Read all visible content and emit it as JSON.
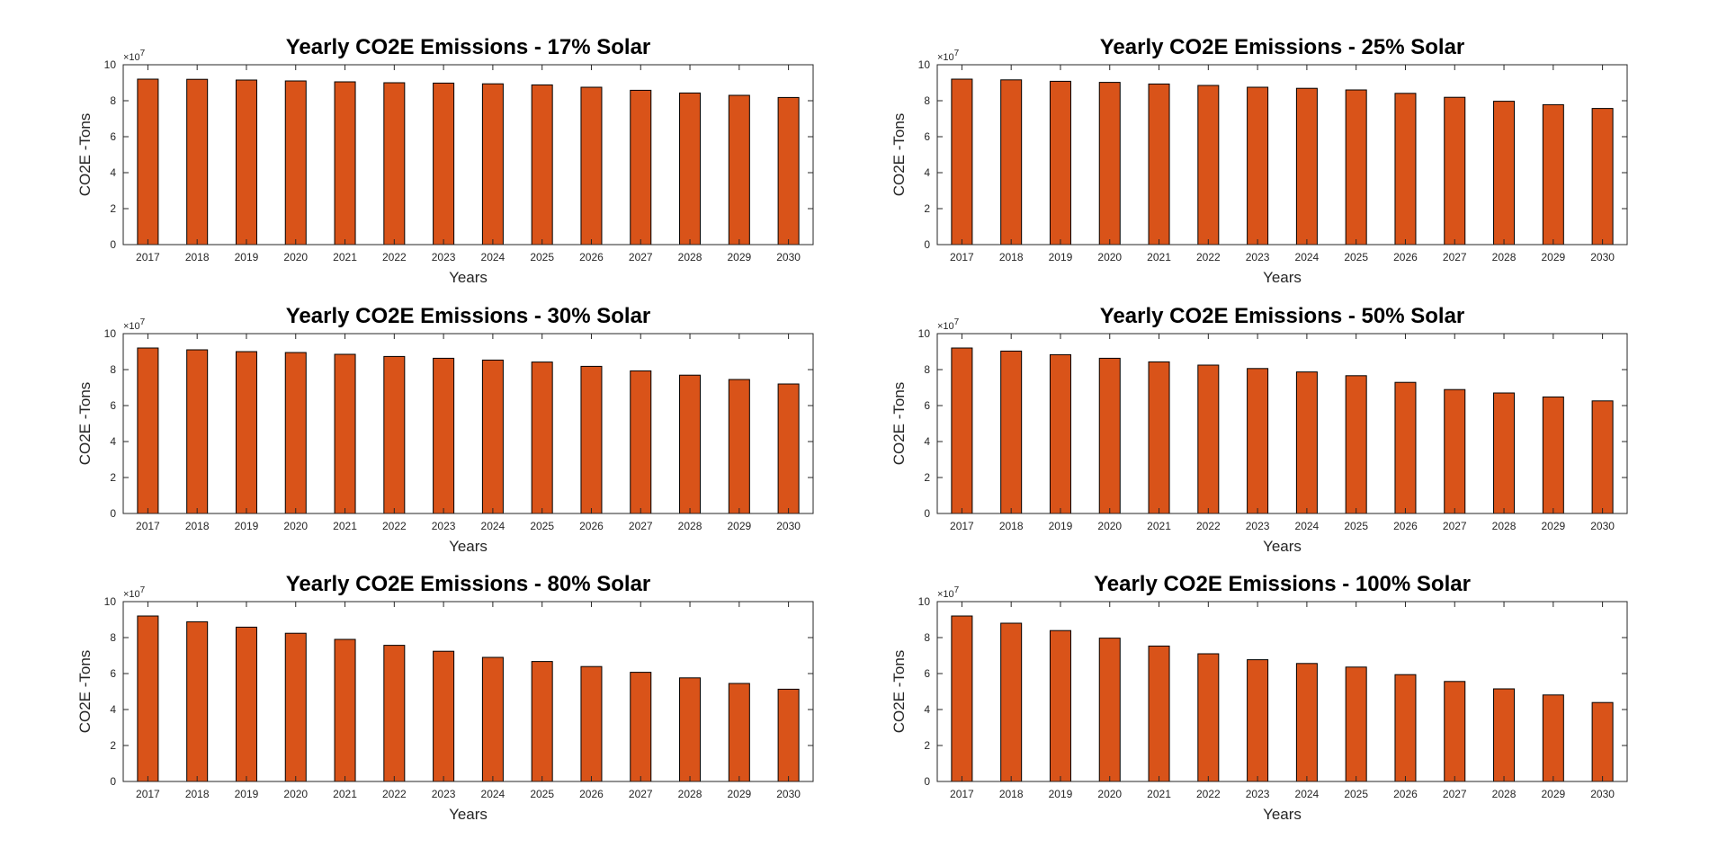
{
  "figure": {
    "background": "#ffffff",
    "bar_color": "#d95319",
    "bar_edge_color": "#000000",
    "axis_color": "#262626"
  },
  "chart_data": [
    {
      "type": "bar",
      "title": "Yearly CO2E Emissions - 17% Solar",
      "xlabel": "Years",
      "ylabel": "CO2E -Tons",
      "exponent_label": "×10",
      "exponent_power": "7",
      "categories": [
        "2017",
        "2018",
        "2019",
        "2020",
        "2021",
        "2022",
        "2023",
        "2024",
        "2025",
        "2026",
        "2027",
        "2028",
        "2029",
        "2030"
      ],
      "values": [
        92000000,
        91900000,
        91500000,
        91000000,
        90500000,
        90000000,
        89800000,
        89400000,
        88800000,
        87500000,
        85800000,
        84300000,
        83000000,
        81800000
      ],
      "ylim": [
        0,
        100000000
      ],
      "yticks": [
        "0",
        "2",
        "4",
        "6",
        "8",
        "10"
      ],
      "grid": false
    },
    {
      "type": "bar",
      "title": "Yearly CO2E Emissions - 25% Solar",
      "xlabel": "Years",
      "ylabel": "CO2E -Tons",
      "exponent_label": "×10",
      "exponent_power": "7",
      "categories": [
        "2017",
        "2018",
        "2019",
        "2020",
        "2021",
        "2022",
        "2023",
        "2024",
        "2025",
        "2026",
        "2027",
        "2028",
        "2029",
        "2030"
      ],
      "values": [
        92000000,
        91600000,
        90800000,
        90200000,
        89300000,
        88500000,
        87500000,
        86900000,
        86000000,
        84100000,
        81900000,
        79700000,
        77800000,
        75700000
      ],
      "ylim": [
        0,
        100000000
      ],
      "yticks": [
        "0",
        "2",
        "4",
        "6",
        "8",
        "10"
      ],
      "grid": false
    },
    {
      "type": "bar",
      "title": "Yearly CO2E Emissions - 30% Solar",
      "xlabel": "Years",
      "ylabel": "CO2E -Tons",
      "exponent_label": "×10",
      "exponent_power": "7",
      "categories": [
        "2017",
        "2018",
        "2019",
        "2020",
        "2021",
        "2022",
        "2023",
        "2024",
        "2025",
        "2026",
        "2027",
        "2028",
        "2029",
        "2030"
      ],
      "values": [
        92000000,
        91000000,
        90000000,
        89500000,
        88500000,
        87300000,
        86300000,
        85300000,
        84200000,
        81800000,
        79300000,
        76900000,
        74500000,
        72000000
      ],
      "ylim": [
        0,
        100000000
      ],
      "yticks": [
        "0",
        "2",
        "4",
        "6",
        "8",
        "10"
      ],
      "grid": false
    },
    {
      "type": "bar",
      "title": "Yearly CO2E Emissions - 50% Solar",
      "xlabel": "Years",
      "ylabel": "CO2E -Tons",
      "exponent_label": "×10",
      "exponent_power": "7",
      "categories": [
        "2017",
        "2018",
        "2019",
        "2020",
        "2021",
        "2022",
        "2023",
        "2024",
        "2025",
        "2026",
        "2027",
        "2028",
        "2029",
        "2030"
      ],
      "values": [
        92000000,
        90300000,
        88300000,
        86300000,
        84300000,
        82500000,
        80600000,
        78700000,
        76600000,
        72900000,
        68900000,
        67000000,
        64800000,
        62600000
      ],
      "ylim": [
        0,
        100000000
      ],
      "yticks": [
        "0",
        "2",
        "4",
        "6",
        "8",
        "10"
      ],
      "grid": false
    },
    {
      "type": "bar",
      "title": "Yearly CO2E Emissions - 80% Solar",
      "xlabel": "Years",
      "ylabel": "CO2E -Tons",
      "exponent_label": "×10",
      "exponent_power": "7",
      "categories": [
        "2017",
        "2018",
        "2019",
        "2020",
        "2021",
        "2022",
        "2023",
        "2024",
        "2025",
        "2026",
        "2027",
        "2028",
        "2029",
        "2030"
      ],
      "values": [
        92000000,
        88800000,
        85800000,
        82400000,
        79000000,
        75700000,
        72400000,
        69000000,
        66700000,
        63900000,
        60700000,
        57600000,
        54500000,
        51300000
      ],
      "ylim": [
        0,
        100000000
      ],
      "yticks": [
        "0",
        "2",
        "4",
        "6",
        "8",
        "10"
      ],
      "grid": false
    },
    {
      "type": "bar",
      "title": "Yearly CO2E Emissions - 100% Solar",
      "xlabel": "Years",
      "ylabel": "CO2E -Tons",
      "exponent_label": "×10",
      "exponent_power": "7",
      "categories": [
        "2017",
        "2018",
        "2019",
        "2020",
        "2021",
        "2022",
        "2023",
        "2024",
        "2025",
        "2026",
        "2027",
        "2028",
        "2029",
        "2030"
      ],
      "values": [
        92000000,
        88000000,
        83900000,
        79700000,
        75300000,
        71000000,
        67700000,
        65600000,
        63600000,
        59400000,
        55600000,
        51500000,
        48100000,
        43900000
      ],
      "ylim": [
        0,
        100000000
      ],
      "yticks": [
        "0",
        "2",
        "4",
        "6",
        "8",
        "10"
      ],
      "grid": false
    }
  ]
}
